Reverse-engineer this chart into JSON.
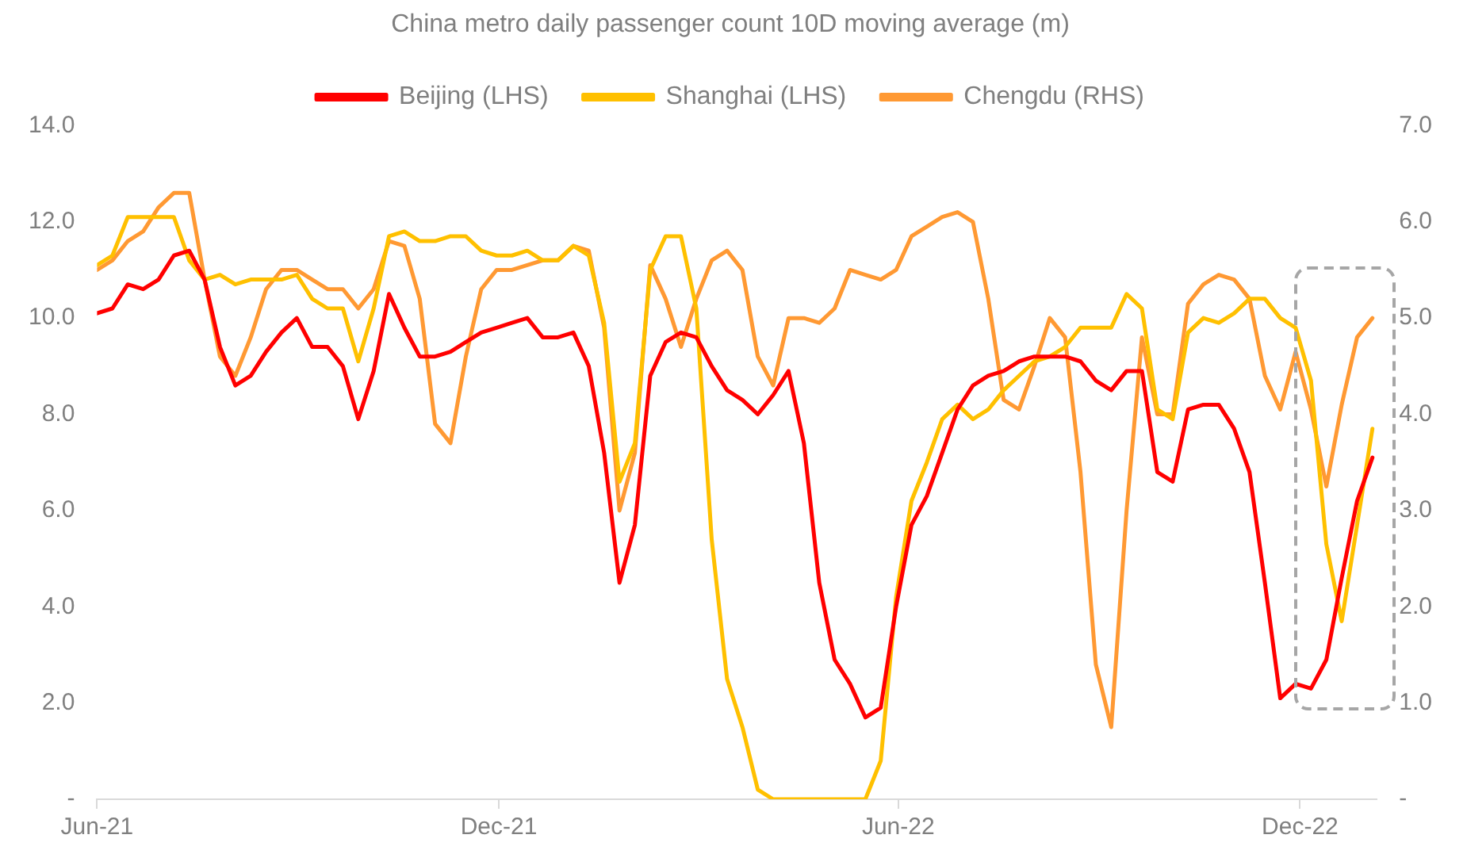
{
  "chart_data": {
    "type": "line",
    "title": "China metro daily passenger count 10D moving average (m)",
    "legend": "top",
    "grid": false,
    "marker": "none",
    "line_style": "solid",
    "x": [
      "2021-06-01",
      "2021-06-08",
      "2021-06-15",
      "2021-06-22",
      "2021-06-29",
      "2021-07-06",
      "2021-07-13",
      "2021-07-20",
      "2021-07-27",
      "2021-08-03",
      "2021-08-10",
      "2021-08-17",
      "2021-08-24",
      "2021-08-31",
      "2021-09-07",
      "2021-09-14",
      "2021-09-21",
      "2021-09-28",
      "2021-10-05",
      "2021-10-12",
      "2021-10-19",
      "2021-10-26",
      "2021-11-02",
      "2021-11-09",
      "2021-11-16",
      "2021-11-23",
      "2021-11-30",
      "2021-12-07",
      "2021-12-14",
      "2021-12-21",
      "2021-12-28",
      "2022-01-04",
      "2022-01-11",
      "2022-01-18",
      "2022-01-25",
      "2022-02-01",
      "2022-02-08",
      "2022-02-15",
      "2022-02-22",
      "2022-03-01",
      "2022-03-08",
      "2022-03-15",
      "2022-03-22",
      "2022-03-29",
      "2022-04-05",
      "2022-04-12",
      "2022-04-19",
      "2022-04-26",
      "2022-05-03",
      "2022-05-10",
      "2022-05-17",
      "2022-05-24",
      "2022-05-31",
      "2022-06-07",
      "2022-06-14",
      "2022-06-21",
      "2022-06-28",
      "2022-07-05",
      "2022-07-12",
      "2022-07-19",
      "2022-07-26",
      "2022-08-02",
      "2022-08-09",
      "2022-08-16",
      "2022-08-23",
      "2022-08-30",
      "2022-09-06",
      "2022-09-13",
      "2022-09-20",
      "2022-09-27",
      "2022-10-04",
      "2022-10-11",
      "2022-10-18",
      "2022-10-25",
      "2022-11-01",
      "2022-11-08",
      "2022-11-15",
      "2022-11-22",
      "2022-11-29",
      "2022-12-06",
      "2022-12-13",
      "2022-12-20",
      "2022-12-27",
      "2023-01-03"
    ],
    "series": [
      {
        "name": "Beijing (LHS)",
        "color": "#ff0000",
        "values": [
          10.1,
          10.2,
          10.7,
          10.6,
          10.8,
          11.3,
          11.4,
          10.8,
          9.4,
          8.6,
          8.8,
          9.3,
          9.7,
          10.0,
          9.4,
          9.4,
          9.0,
          7.9,
          8.9,
          10.5,
          9.8,
          9.2,
          9.2,
          9.3,
          9.5,
          9.7,
          9.8,
          9.9,
          10.0,
          9.6,
          9.6,
          9.7,
          9.0,
          7.2,
          4.5,
          5.7,
          8.8,
          9.5,
          9.7,
          9.6,
          9.0,
          8.5,
          8.3,
          8.0,
          8.4,
          8.9,
          7.4,
          4.5,
          2.9,
          2.4,
          1.7,
          1.9,
          4.0,
          5.7,
          6.3,
          7.2,
          8.1,
          8.6,
          8.8,
          8.9,
          9.1,
          9.2,
          9.2,
          9.2,
          9.1,
          8.7,
          8.5,
          8.9,
          8.9,
          6.8,
          6.6,
          8.1,
          8.2,
          8.2,
          7.7,
          6.8,
          4.5,
          2.1,
          2.4,
          2.3,
          2.9,
          4.6,
          6.2,
          7.1
        ]
      },
      {
        "name": "Shanghai (LHS)",
        "color": "#ffc000",
        "values": [
          11.1,
          11.3,
          12.1,
          12.1,
          12.1,
          12.1,
          11.2,
          10.8,
          10.9,
          10.7,
          10.8,
          10.8,
          10.8,
          10.9,
          10.4,
          10.2,
          10.2,
          9.1,
          10.2,
          11.7,
          11.8,
          11.6,
          11.6,
          11.7,
          11.7,
          11.4,
          11.3,
          11.3,
          11.4,
          11.2,
          11.2,
          11.5,
          11.3,
          9.9,
          6.6,
          7.4,
          11.0,
          11.7,
          11.7,
          10.2,
          5.4,
          2.5,
          1.5,
          0.2,
          0,
          0,
          0,
          0,
          0,
          0,
          0,
          0.8,
          4.2,
          6.2,
          7.0,
          7.9,
          8.2,
          7.9,
          8.1,
          8.5,
          8.8,
          9.1,
          9.2,
          9.4,
          9.8,
          9.8,
          9.8,
          10.5,
          10.2,
          8.1,
          7.9,
          9.7,
          10.0,
          9.9,
          10.1,
          10.4,
          10.4,
          10.0,
          9.8,
          8.7,
          5.3,
          3.7,
          5.7,
          7.7
        ]
      },
      {
        "name": "Chengdu (RHS)",
        "color": "#ff9933",
        "axis": "y2",
        "values": [
          5.5,
          5.6,
          5.8,
          5.9,
          6.15,
          6.3,
          6.3,
          5.4,
          4.6,
          4.4,
          4.8,
          5.3,
          5.5,
          5.5,
          5.4,
          5.3,
          5.3,
          5.1,
          5.3,
          5.8,
          5.75,
          5.2,
          3.9,
          3.7,
          4.6,
          5.3,
          5.5,
          5.5,
          5.55,
          5.6,
          5.6,
          5.75,
          5.7,
          4.9,
          3.0,
          3.6,
          5.55,
          5.2,
          4.7,
          5.2,
          5.6,
          5.7,
          5.5,
          4.6,
          4.3,
          5.0,
          5.0,
          4.95,
          5.1,
          5.5,
          5.45,
          5.4,
          5.5,
          5.85,
          5.95,
          6.05,
          6.1,
          6.0,
          5.2,
          4.15,
          4.05,
          4.5,
          5.0,
          4.8,
          3.4,
          1.4,
          0.75,
          3.0,
          4.8,
          4.0,
          4.0,
          5.15,
          5.35,
          5.45,
          5.4,
          5.2,
          4.4,
          4.05,
          4.65,
          4.05,
          3.25,
          4.1,
          4.8,
          5.0
        ]
      }
    ],
    "xlim": [
      "2021-06-01",
      "2023-01-05"
    ],
    "xticks": [
      {
        "value": "2021-06-01",
        "label": "Jun-21"
      },
      {
        "value": "2021-12-01",
        "label": "Dec-21"
      },
      {
        "value": "2022-06-01",
        "label": "Jun-22"
      },
      {
        "value": "2022-12-01",
        "label": "Dec-22"
      }
    ],
    "ylim": [
      0,
      14
    ],
    "yticks": [
      {
        "value": 0,
        "label": "-"
      },
      {
        "value": 2,
        "label": "2.0"
      },
      {
        "value": 4,
        "label": "4.0"
      },
      {
        "value": 6,
        "label": "6.0"
      },
      {
        "value": 8,
        "label": "8.0"
      },
      {
        "value": 10,
        "label": "10.0"
      },
      {
        "value": 12,
        "label": "12.0"
      },
      {
        "value": 14,
        "label": "14.0"
      }
    ],
    "y2lim": [
      0,
      7
    ],
    "y2ticks": [
      {
        "value": 0,
        "label": "-"
      },
      {
        "value": 1,
        "label": "1.0"
      },
      {
        "value": 2,
        "label": "2.0"
      },
      {
        "value": 3,
        "label": "3.0"
      },
      {
        "value": 4,
        "label": "4.0"
      },
      {
        "value": 5,
        "label": "5.0"
      },
      {
        "value": 6,
        "label": "6.0"
      },
      {
        "value": 7,
        "label": "7.0"
      }
    ]
  }
}
